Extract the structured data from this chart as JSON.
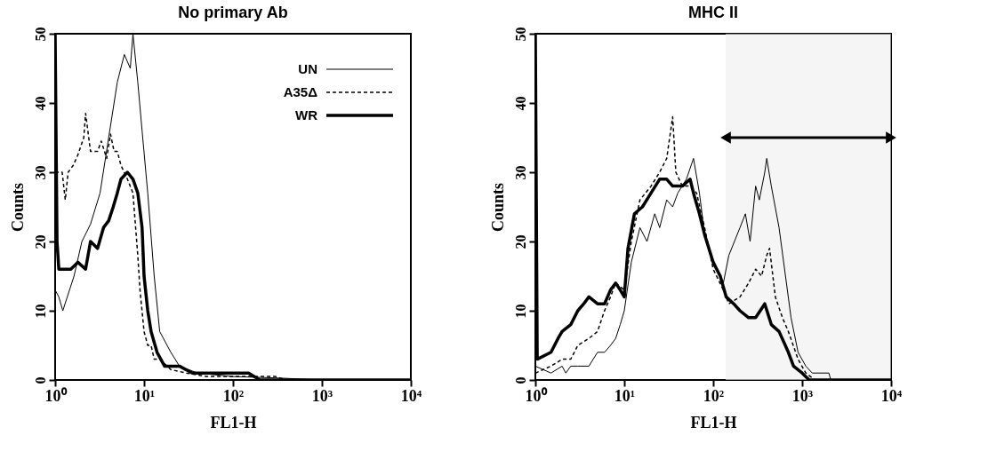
{
  "chart_data": [
    {
      "type": "line",
      "title": "No primary Ab",
      "xlabel": "FL1-H",
      "ylabel": "Counts",
      "log": "x",
      "xlim": [
        1,
        10000
      ],
      "ylim": [
        0,
        50
      ],
      "xticks": [
        {
          "value": 1,
          "label": "10⁰"
        },
        {
          "value": 10,
          "label": "10¹"
        },
        {
          "value": 100,
          "label": "10²"
        },
        {
          "value": 1000,
          "label": "10³"
        },
        {
          "value": 10000,
          "label": "10⁴"
        }
      ],
      "yticks": [
        0,
        10,
        20,
        30,
        40,
        50
      ],
      "grid": false,
      "legend": "top right",
      "series": [
        {
          "name": "UN",
          "color": "#000000",
          "line_style": "solid",
          "x": [
            1,
            1.1,
            1.22,
            1.63,
            2,
            2.5,
            3.2,
            4,
            5,
            6,
            7,
            7.5,
            8.5,
            9.5,
            11,
            13,
            15,
            20,
            25,
            40,
            100,
            300,
            1000,
            10000
          ],
          "values": [
            13,
            12,
            10,
            15,
            20,
            22.5,
            27,
            35,
            43,
            47,
            45,
            50,
            43,
            36,
            27,
            15,
            7,
            4,
            2,
            1,
            0.5,
            0.3,
            0,
            0
          ]
        },
        {
          "name": "A35Δ",
          "color": "#000000",
          "line_style": "dashed",
          "x": [
            1,
            1.2,
            1.3,
            1.4,
            1.6,
            1.8,
            2.1,
            2.2,
            2.5,
            3,
            3.3,
            3.8,
            4.2,
            4.6,
            5,
            5.5,
            6.5,
            7.5,
            8.5,
            9,
            10,
            11,
            12,
            13,
            15,
            20,
            30,
            50,
            100,
            200,
            300,
            400,
            10000
          ],
          "values": [
            30,
            30,
            26,
            30,
            31,
            32.5,
            35,
            38.5,
            33,
            33,
            34.5,
            32,
            35.5,
            33,
            33,
            31,
            29,
            27,
            18,
            13,
            7,
            5,
            5,
            3,
            3,
            1.5,
            1,
            0.5,
            0.5,
            0.5,
            0.5,
            0,
            0
          ]
        },
        {
          "name": "WR",
          "color": "#000000",
          "line_style": "solid",
          "x": [
            1,
            1.05,
            1.1,
            1.5,
            1.8,
            2.2,
            2.5,
            3,
            3.5,
            4,
            4.5,
            5,
            5.5,
            6.5,
            7.5,
            8.5,
            9.5,
            10,
            11,
            12,
            14,
            17,
            25,
            35,
            60,
            100,
            150,
            200,
            10000
          ],
          "values": [
            50,
            20,
            16,
            16,
            17,
            16,
            20,
            19,
            22,
            23,
            25,
            27,
            29,
            30,
            29,
            27,
            22,
            15,
            10,
            7,
            4,
            2,
            2,
            1,
            1,
            1,
            1,
            0,
            0
          ]
        }
      ]
    },
    {
      "type": "line",
      "title": "MHC II",
      "xlabel": "FL1-H",
      "ylabel": "Counts",
      "log": "x",
      "xlim": [
        1,
        10000
      ],
      "ylim": [
        0,
        50
      ],
      "xticks": [
        {
          "value": 1,
          "label": "10⁰"
        },
        {
          "value": 10,
          "label": "10¹"
        },
        {
          "value": 100,
          "label": "10²"
        },
        {
          "value": 1000,
          "label": "10³"
        },
        {
          "value": 10000,
          "label": "10⁴"
        }
      ],
      "yticks": [
        0,
        10,
        20,
        30,
        40,
        50
      ],
      "grid": false,
      "bands": [
        {
          "axis": "x",
          "from": 138,
          "to": 10000
        }
      ],
      "series": [
        {
          "color": "#000000",
          "line_style": "solid",
          "x": [
            1,
            1.5,
            2,
            2.2,
            2.5,
            3,
            4,
            5,
            6,
            7,
            8,
            9,
            10,
            12,
            15,
            18,
            22,
            25,
            30,
            35,
            40,
            50,
            60,
            70,
            80,
            100,
            130,
            150,
            200,
            230,
            260,
            300,
            330,
            380,
            400,
            450,
            550,
            650,
            750,
            900,
            1100,
            1300,
            2000,
            2100,
            10000
          ],
          "values": [
            2,
            1,
            2,
            1,
            2,
            2,
            2,
            4,
            4,
            5,
            6,
            8,
            10,
            17,
            22,
            20,
            24,
            22,
            26,
            25,
            27,
            29,
            32,
            27,
            21,
            17,
            14,
            18,
            22,
            24,
            20,
            28,
            26,
            30,
            32,
            28,
            22,
            15,
            9,
            4,
            2,
            1,
            1,
            0,
            0
          ]
        },
        {
          "color": "#000000",
          "line_style": "dashed",
          "x": [
            1,
            1.5,
            2,
            2.5,
            3,
            4,
            5,
            6,
            7,
            8,
            10,
            12,
            15,
            20,
            25,
            30,
            35,
            38,
            45,
            55,
            65,
            80,
            100,
            130,
            150,
            200,
            250,
            300,
            350,
            400,
            430,
            500,
            600,
            700,
            900,
            1100,
            1400,
            10000
          ],
          "values": [
            1,
            2,
            3,
            3,
            5,
            6,
            7,
            10,
            12,
            14,
            13,
            20,
            26,
            28,
            30,
            32,
            38,
            30,
            28,
            28,
            27,
            22,
            16,
            13,
            11,
            12,
            14,
            16,
            15,
            18,
            19,
            12,
            9,
            7,
            3,
            1,
            0,
            0
          ]
        },
        {
          "color": "#000000",
          "line_style": "solid",
          "x": [
            1,
            1.05,
            1.5,
            1.8,
            2,
            2.5,
            3,
            3.5,
            4,
            5,
            6,
            7,
            8,
            9,
            10,
            11,
            13,
            16,
            20,
            25,
            30,
            35,
            45,
            55,
            60,
            70,
            80,
            100,
            120,
            140,
            170,
            200,
            250,
            300,
            380,
            450,
            550,
            700,
            800,
            1000,
            1200,
            10000
          ],
          "values": [
            50,
            3,
            4,
            6,
            7,
            8,
            10,
            11,
            12,
            11,
            11,
            13,
            14,
            13,
            12,
            19,
            24,
            25,
            27,
            29,
            29,
            28,
            28,
            29,
            27,
            24,
            21,
            17,
            15,
            12,
            11,
            10,
            9,
            9,
            11,
            8,
            7,
            4,
            2,
            1,
            0,
            0
          ]
        }
      ]
    }
  ]
}
